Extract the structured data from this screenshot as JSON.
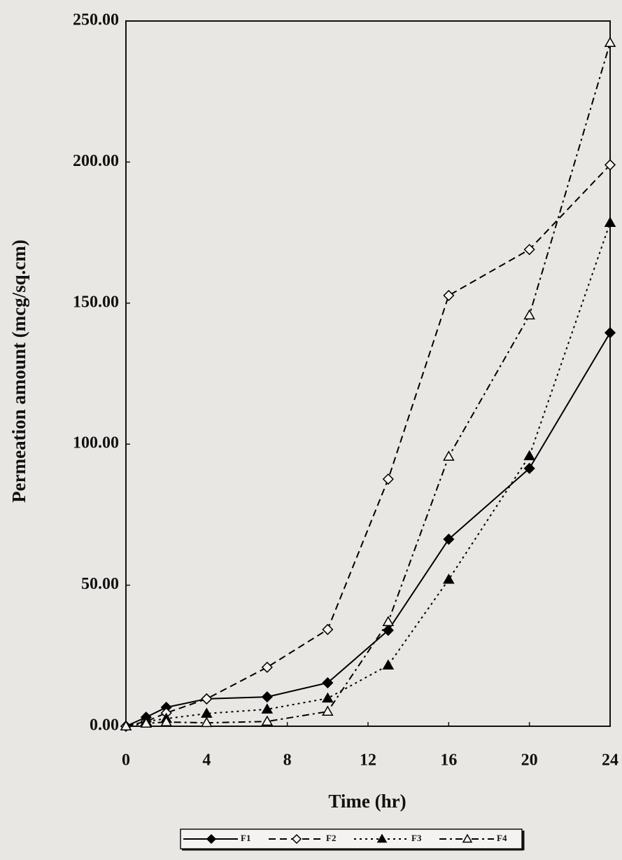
{
  "chart_data": {
    "type": "line",
    "x_label": "Time (hr)",
    "y_label": "Permeation amount (mcg/sq.cm)",
    "x": [
      0,
      1,
      2,
      4,
      7,
      10,
      13,
      16,
      20,
      24
    ],
    "xlim": [
      0,
      24
    ],
    "xticks": [
      0,
      4,
      8,
      12,
      16,
      20,
      24
    ],
    "ylim": [
      0,
      250
    ],
    "yticks": [
      {
        "value": 0,
        "label": "0.00"
      },
      {
        "value": 50,
        "label": "50.00"
      },
      {
        "value": 100,
        "label": "100.00"
      },
      {
        "value": 150,
        "label": "150.00"
      },
      {
        "value": 200,
        "label": "200.00"
      },
      {
        "value": 250,
        "label": "250.00"
      }
    ],
    "grid": false,
    "legend": "bottom",
    "series": [
      {
        "name": "F1",
        "color": "#000000",
        "line_style": "solid",
        "marker": "diamond",
        "filled": true,
        "values": [
          0,
          3.2,
          6.7,
          9.7,
          10.4,
          15.4,
          34,
          66.3,
          91.4,
          139.5
        ]
      },
      {
        "name": "F2",
        "color": "#000000",
        "line_style": "dashed",
        "marker": "diamond",
        "filled": false,
        "values": [
          0,
          1.7,
          4.7,
          9.7,
          20.9,
          34.3,
          87.6,
          152.7,
          169,
          199
        ]
      },
      {
        "name": "F3",
        "color": "#000000",
        "line_style": "dotted",
        "marker": "triangle",
        "filled": true,
        "values": [
          0,
          1.7,
          2.7,
          4.5,
          6,
          9.9,
          21.6,
          52,
          95.8,
          178.5
        ]
      },
      {
        "name": "F4",
        "color": "#000000",
        "line_style": "dashdot",
        "marker": "triangle",
        "filled": false,
        "values": [
          0,
          1,
          1.5,
          1.2,
          1.7,
          5.2,
          37,
          95.6,
          145.7,
          242.3
        ]
      }
    ]
  }
}
